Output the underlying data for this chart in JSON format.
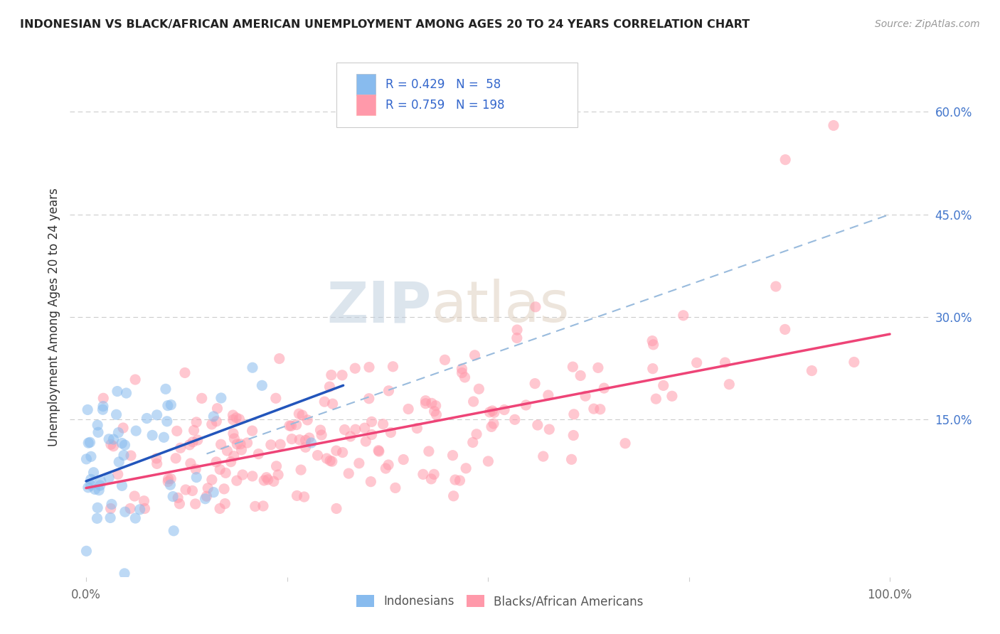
{
  "title": "INDONESIAN VS BLACK/AFRICAN AMERICAN UNEMPLOYMENT AMONG AGES 20 TO 24 YEARS CORRELATION CHART",
  "source": "Source: ZipAtlas.com",
  "ylabel": "Unemployment Among Ages 20 to 24 years",
  "legend_label1": "Indonesians",
  "legend_label2": "Blacks/African Americans",
  "r1": 0.429,
  "n1": 58,
  "r2": 0.759,
  "n2": 198,
  "color_blue": "#88BBEE",
  "color_pink": "#FF99AA",
  "color_line_blue": "#2255BB",
  "color_line_pink": "#EE4477",
  "color_dashed": "#99BBDD",
  "background": "#FFFFFF",
  "watermark_zip": "ZIP",
  "watermark_atlas": "atlas",
  "ytick_vals": [
    0.15,
    0.3,
    0.45,
    0.6
  ],
  "blue_line_x0": 0.0,
  "blue_line_y0": 0.06,
  "blue_line_x1": 0.32,
  "blue_line_y1": 0.2,
  "pink_line_x0": 0.0,
  "pink_line_y0": 0.05,
  "pink_line_x1": 1.0,
  "pink_line_y1": 0.275,
  "dash_line_x0": 0.15,
  "dash_line_y0": 0.1,
  "dash_line_x1": 1.0,
  "dash_line_y1": 0.45,
  "ylim_min": -0.08,
  "ylim_max": 0.68,
  "xlim_min": -0.02,
  "xlim_max": 1.05
}
